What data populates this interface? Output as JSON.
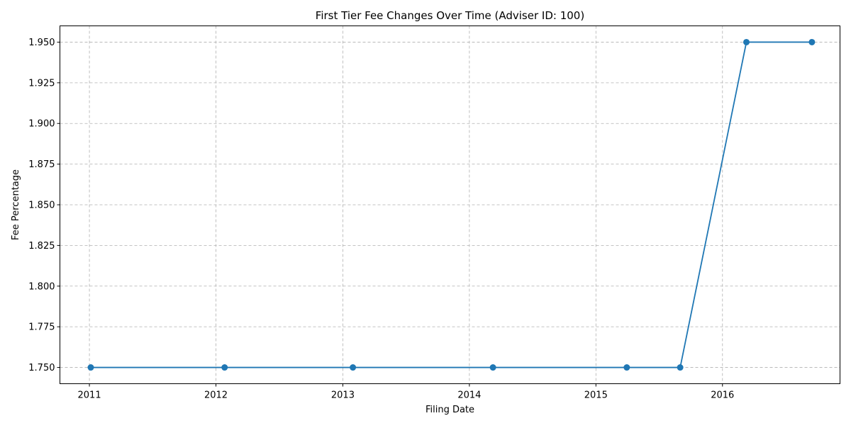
{
  "chart_data": {
    "type": "line",
    "title": "First Tier Fee Changes Over Time (Adviser ID: 100)",
    "xlabel": "Filing Date",
    "ylabel": "Fee Percentage",
    "x_ticks": [
      "2011",
      "2012",
      "2013",
      "2014",
      "2015",
      "2016"
    ],
    "y_ticks": [
      "1.750",
      "1.775",
      "1.800",
      "1.825",
      "1.850",
      "1.875",
      "1.900",
      "1.925",
      "1.950"
    ],
    "xlim": [
      "2010-10-08",
      "2016-12-05"
    ],
    "ylim": [
      1.74,
      1.96
    ],
    "grid": true,
    "series": [
      {
        "color": "#1f77b4",
        "marker": "circle",
        "points": [
          {
            "x": "2011-01-05",
            "y": 1.75
          },
          {
            "x": "2012-01-26",
            "y": 1.75
          },
          {
            "x": "2013-01-30",
            "y": 1.75
          },
          {
            "x": "2014-03-10",
            "y": 1.75
          },
          {
            "x": "2015-03-31",
            "y": 1.75
          },
          {
            "x": "2015-09-01",
            "y": 1.75
          },
          {
            "x": "2016-03-10",
            "y": 1.95
          },
          {
            "x": "2016-09-15",
            "y": 1.95
          }
        ]
      }
    ]
  }
}
